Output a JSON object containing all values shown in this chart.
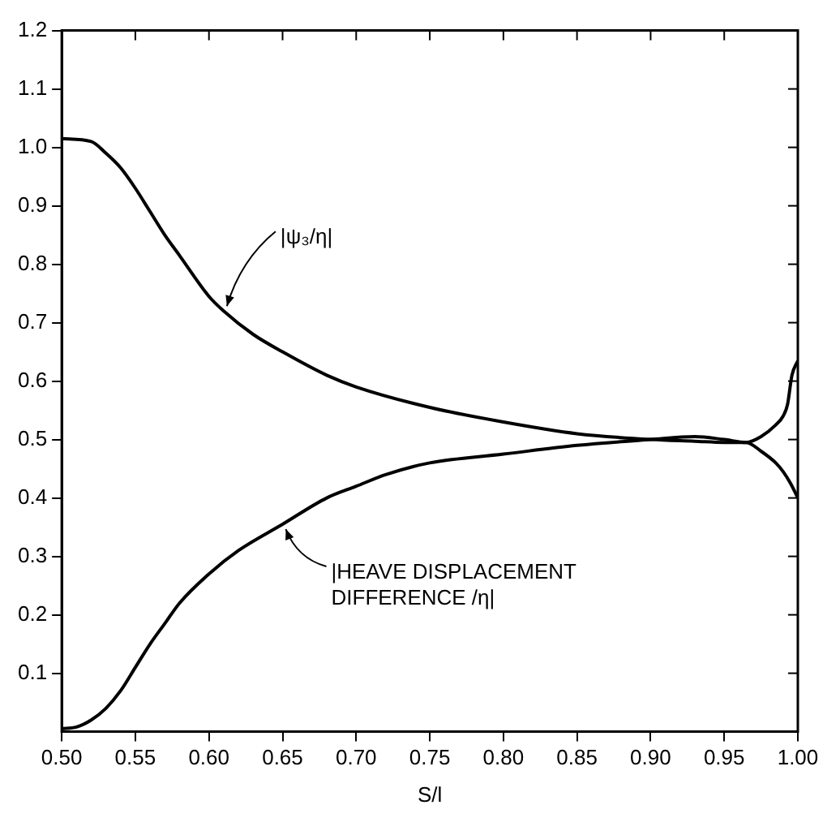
{
  "chart_data": {
    "type": "line",
    "xlabel": "S/l",
    "xlim": [
      0.5,
      1.0
    ],
    "ylim": [
      0,
      1.2
    ],
    "xticks": [
      {
        "value": 0.5,
        "label": "0.50"
      },
      {
        "value": 0.55,
        "label": "0.55"
      },
      {
        "value": 0.6,
        "label": "0.60"
      },
      {
        "value": 0.65,
        "label": "0.65"
      },
      {
        "value": 0.7,
        "label": "0.70"
      },
      {
        "value": 0.75,
        "label": "0.75"
      },
      {
        "value": 0.8,
        "label": "0.80"
      },
      {
        "value": 0.85,
        "label": "0.85"
      },
      {
        "value": 0.9,
        "label": "0.90"
      },
      {
        "value": 0.95,
        "label": "0.95"
      },
      {
        "value": 1.0,
        "label": "1.00"
      }
    ],
    "yticks": [
      0.1,
      0.2,
      0.3,
      0.4,
      0.5,
      0.6,
      0.7,
      0.8,
      0.9,
      {
        "value": 1.0,
        "label": "1.0"
      },
      1.1,
      1.2
    ],
    "grid": false,
    "legend": false,
    "marker": "none",
    "line_style": "solid",
    "series": [
      {
        "color": "#000000",
        "x": [
          0.5,
          0.52,
          0.53,
          0.54,
          0.55,
          0.56,
          0.57,
          0.58,
          0.6,
          0.61,
          0.63,
          0.65,
          0.68,
          0.7,
          0.75,
          0.8,
          0.85,
          0.9,
          0.93,
          0.95,
          0.965,
          0.975,
          0.985,
          0.99,
          0.995,
          1.0
        ],
        "values": [
          1.015,
          1.01,
          0.99,
          0.965,
          0.93,
          0.89,
          0.85,
          0.815,
          0.745,
          0.72,
          0.68,
          0.65,
          0.61,
          0.59,
          0.555,
          0.53,
          0.51,
          0.5,
          0.497,
          0.495,
          0.495,
          0.48,
          0.46,
          0.445,
          0.425,
          0.4
        ]
      },
      {
        "color": "#000000",
        "x": [
          0.5,
          0.51,
          0.52,
          0.53,
          0.54,
          0.55,
          0.56,
          0.57,
          0.58,
          0.6,
          0.62,
          0.65,
          0.68,
          0.7,
          0.72,
          0.75,
          0.8,
          0.85,
          0.9,
          0.93,
          0.95,
          0.965,
          0.975,
          0.985,
          0.99,
          0.993,
          0.996,
          1.0
        ],
        "values": [
          0.005,
          0.008,
          0.02,
          0.04,
          0.07,
          0.11,
          0.15,
          0.185,
          0.22,
          0.27,
          0.31,
          0.355,
          0.4,
          0.42,
          0.44,
          0.46,
          0.475,
          0.49,
          0.5,
          0.505,
          0.5,
          0.495,
          0.505,
          0.525,
          0.54,
          0.56,
          0.61,
          0.635
        ]
      }
    ],
    "annotations": [
      {
        "text": "|ψ₃/η|",
        "x": 0.61,
        "y": 0.72
      },
      {
        "text": "|HEAVE DISPLACEMENT DIFFERENCE /η|",
        "x": 0.65,
        "y": 0.355
      }
    ]
  }
}
